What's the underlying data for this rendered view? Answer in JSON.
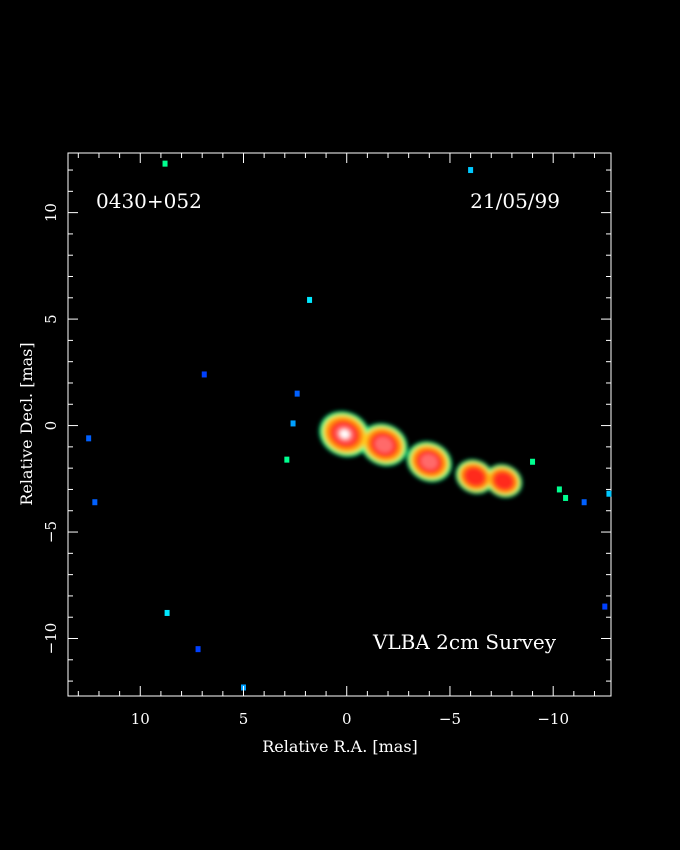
{
  "image": {
    "source_name": "0430+052",
    "date": "21/05/99",
    "survey": "VLBA 2cm Survey",
    "xlabel": "Relative R.A. [mas]",
    "ylabel": "Relative Decl. [mas]",
    "xlim": [
      13.5,
      -12.8
    ],
    "ylim": [
      -12.7,
      12.8
    ],
    "xticks": [
      10,
      5,
      0,
      -5,
      -10
    ],
    "yticks": [
      10,
      5,
      0,
      -5,
      -10
    ],
    "xtick_labels": [
      "10",
      "5",
      "0",
      "−5",
      "−10"
    ],
    "ytick_labels": [
      "10",
      "5",
      "0",
      "−5",
      "−10"
    ],
    "colormap": [
      "#ffffff",
      "#ff6a6a",
      "#ff2a1a",
      "#ff7a10",
      "#ffd020",
      "#00ff90",
      "#00c8ff",
      "#0040ff"
    ],
    "jet_knots": [
      {
        "ra": 0.1,
        "dec": -0.4,
        "level": 1.0
      },
      {
        "ra": -1.8,
        "dec": -0.9,
        "level": 0.85
      },
      {
        "ra": -4.0,
        "dec": -1.7,
        "level": 0.75
      },
      {
        "ra": -6.2,
        "dec": -2.4,
        "level": 0.45
      },
      {
        "ra": -7.6,
        "dec": -2.6,
        "level": 0.4
      }
    ],
    "noise_spots": [
      {
        "ra": 8.8,
        "dec": 12.3,
        "color": "#00ff90"
      },
      {
        "ra": 1.8,
        "dec": 5.9,
        "color": "#00e8ff"
      },
      {
        "ra": -6.0,
        "dec": 12.0,
        "color": "#00c8ff"
      },
      {
        "ra": 6.9,
        "dec": 2.4,
        "color": "#0040ff"
      },
      {
        "ra": 2.4,
        "dec": 1.5,
        "color": "#0060ff"
      },
      {
        "ra": 2.6,
        "dec": 0.1,
        "color": "#00a0ff"
      },
      {
        "ra": 2.9,
        "dec": -1.6,
        "color": "#00ff90"
      },
      {
        "ra": 12.5,
        "dec": -0.6,
        "color": "#0060ff"
      },
      {
        "ra": 12.2,
        "dec": -3.6,
        "color": "#0060ff"
      },
      {
        "ra": 8.7,
        "dec": -8.8,
        "color": "#00e8ff"
      },
      {
        "ra": 7.2,
        "dec": -10.5,
        "color": "#0040ff"
      },
      {
        "ra": 5.0,
        "dec": -12.3,
        "color": "#00a0ff"
      },
      {
        "ra": -9.0,
        "dec": -1.7,
        "color": "#00ff90"
      },
      {
        "ra": -10.3,
        "dec": -3.0,
        "color": "#00ff90"
      },
      {
        "ra": -10.6,
        "dec": -3.4,
        "color": "#00ff90"
      },
      {
        "ra": -11.5,
        "dec": -3.6,
        "color": "#0060ff"
      },
      {
        "ra": -12.7,
        "dec": -3.2,
        "color": "#00c8ff"
      },
      {
        "ra": -12.5,
        "dec": -8.5,
        "color": "#0040ff"
      }
    ]
  }
}
